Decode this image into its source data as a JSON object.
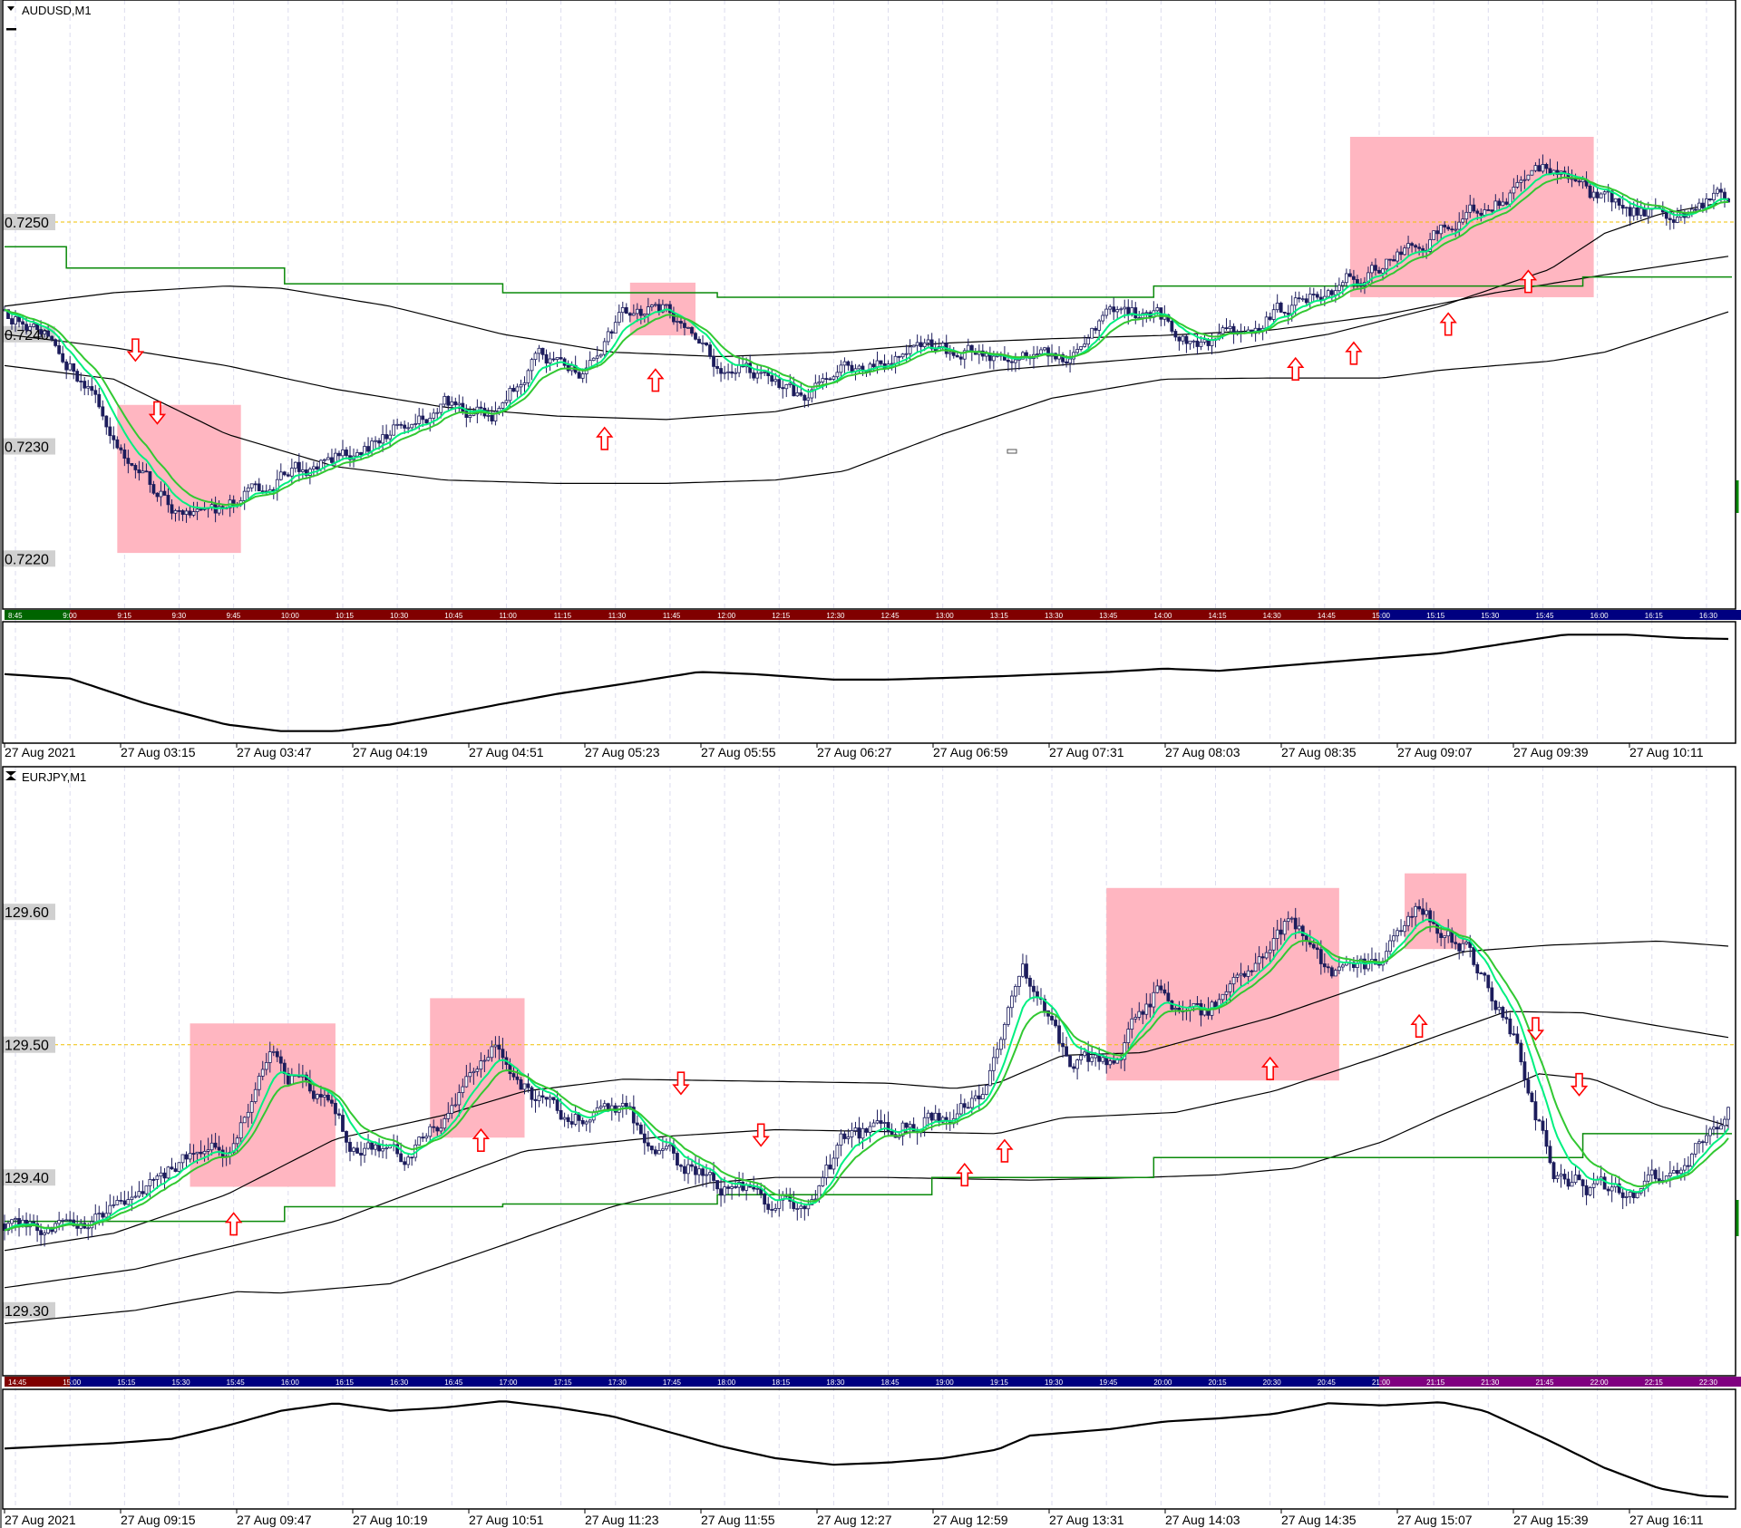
{
  "colors": {
    "candle_outline": "#1c1c5c",
    "bull_fill": "#ffffff",
    "bear_fill": "#1c1c5c",
    "ema_fast": "#00f080",
    "ema_slow": "#32c832",
    "band": "#000000",
    "step_line": "#0a8a0a",
    "box": "#ffb6c1",
    "arrow": "#ff0000",
    "bid_line": "#f0c000",
    "grid": "#dcdcee",
    "label_bg": "#d0d0d0"
  },
  "panes": [
    {
      "title": "AUDUSD,M1",
      "title_icon": "triangle-down-icon",
      "bars": 475,
      "price_range": [
        0.72155,
        0.72698
      ],
      "bid_price": 0.725,
      "price_labels": [
        "0.7250",
        "0.7240",
        "0.7230",
        "0.7220"
      ],
      "close_anchors": [
        0.72421,
        0.724,
        0.72343,
        0.72278,
        0.72237,
        0.72241,
        0.7227,
        0.72282,
        0.72298,
        0.72319,
        0.72339,
        0.72327,
        0.7238,
        0.72368,
        0.72417,
        0.72421,
        0.72376,
        0.72368,
        0.72339,
        0.72368,
        0.72376,
        0.72388,
        0.7238,
        0.72384,
        0.7238,
        0.72417,
        0.72417,
        0.72392,
        0.72404,
        0.72425,
        0.72441,
        0.72462,
        0.72482,
        0.72507,
        0.72523,
        0.72551,
        0.72519,
        0.72508,
        0.72511,
        0.72527
      ],
      "noise": 0.00013,
      "bands": [
        [
          [
            0,
            0.72425
          ],
          [
            30,
            0.72437
          ],
          [
            61,
            0.72443
          ],
          [
            76,
            0.72441
          ],
          [
            106,
            0.72425
          ],
          [
            137,
            0.724
          ],
          [
            167,
            0.72384
          ],
          [
            197,
            0.7238
          ],
          [
            228,
            0.72384
          ],
          [
            258,
            0.72392
          ],
          [
            288,
            0.72396
          ],
          [
            319,
            0.72399
          ],
          [
            349,
            0.72404
          ],
          [
            379,
            0.72417
          ],
          [
            410,
            0.72437
          ],
          [
            440,
            0.72453
          ],
          [
            475,
            0.7247
          ]
        ],
        [
          [
            0,
            0.724
          ],
          [
            30,
            0.72388
          ],
          [
            61,
            0.72372
          ],
          [
            91,
            0.72351
          ],
          [
            121,
            0.72335
          ],
          [
            152,
            0.72327
          ],
          [
            182,
            0.72324
          ],
          [
            212,
            0.72331
          ],
          [
            243,
            0.72351
          ],
          [
            273,
            0.72368
          ],
          [
            304,
            0.72376
          ],
          [
            334,
            0.72384
          ],
          [
            364,
            0.724
          ],
          [
            395,
            0.72425
          ],
          [
            425,
            0.72458
          ],
          [
            440,
            0.7249
          ],
          [
            455,
            0.72507
          ],
          [
            475,
            0.72519
          ]
        ],
        [
          [
            0,
            0.72372
          ],
          [
            30,
            0.7236
          ],
          [
            61,
            0.72311
          ],
          [
            91,
            0.72282
          ],
          [
            121,
            0.7227
          ],
          [
            152,
            0.72267
          ],
          [
            182,
            0.72267
          ],
          [
            212,
            0.7227
          ],
          [
            231,
            0.72278
          ],
          [
            258,
            0.72311
          ],
          [
            288,
            0.72343
          ],
          [
            319,
            0.7236
          ],
          [
            349,
            0.72361
          ],
          [
            379,
            0.72361
          ],
          [
            395,
            0.72368
          ],
          [
            425,
            0.72376
          ],
          [
            440,
            0.72384
          ],
          [
            475,
            0.72421
          ]
        ]
      ],
      "step_line": [
        [
          0,
          17,
          0.72478
        ],
        [
          17,
          77,
          0.72459
        ],
        [
          77,
          137,
          0.72445
        ],
        [
          137,
          196,
          0.72437
        ],
        [
          196,
          316,
          0.72433
        ],
        [
          316,
          434,
          0.72443
        ],
        [
          434,
          475,
          0.72451
        ]
      ],
      "boxes": [
        [
          31,
          65,
          0.72337,
          0.72205
        ],
        [
          172,
          190,
          0.72446,
          0.72399
        ],
        [
          370,
          437,
          0.72576,
          0.72433
        ]
      ],
      "arrows": [
        [
          36,
          0.72386,
          "down"
        ],
        [
          42,
          0.7233,
          "down"
        ],
        [
          165,
          0.72307,
          "up"
        ],
        [
          179,
          0.72359,
          "up"
        ],
        [
          355,
          0.72369,
          "up"
        ],
        [
          371,
          0.72383,
          "up"
        ],
        [
          397,
          0.72409,
          "up"
        ],
        [
          419,
          0.72447,
          "up"
        ]
      ],
      "time_labels": [
        "8:45",
        "9:00",
        "9:15",
        "9:30",
        "9:45",
        "10:00",
        "10:15",
        "10:30",
        "10:45",
        "11:00",
        "11:15",
        "11:30",
        "11:45",
        "12:00",
        "12:15",
        "12:30",
        "12:45",
        "13:00",
        "13:15",
        "13:30",
        "13:45",
        "14:00",
        "14:15",
        "14:30",
        "14:45",
        "15:00",
        "15:15",
        "15:30",
        "15:45",
        "16:00",
        "16:15",
        "16:30"
      ],
      "sessions": [
        [
          0,
          18,
          "#006400"
        ],
        [
          18,
          378,
          "#800000"
        ],
        [
          378,
          475,
          "#000080"
        ]
      ],
      "oscillator": [
        [
          0,
          58
        ],
        [
          18,
          54
        ],
        [
          39,
          31
        ],
        [
          61,
          12
        ],
        [
          76,
          6
        ],
        [
          91,
          6
        ],
        [
          106,
          12
        ],
        [
          121,
          21
        ],
        [
          137,
          31
        ],
        [
          152,
          40
        ],
        [
          170,
          49
        ],
        [
          191,
          60
        ],
        [
          206,
          58
        ],
        [
          228,
          53
        ],
        [
          243,
          53
        ],
        [
          273,
          56
        ],
        [
          304,
          60
        ],
        [
          319,
          63
        ],
        [
          334,
          61
        ],
        [
          364,
          69
        ],
        [
          395,
          77
        ],
        [
          419,
          89
        ],
        [
          429,
          94
        ],
        [
          446,
          94
        ],
        [
          461,
          91
        ],
        [
          475,
          90
        ]
      ],
      "date_labels": [
        "27 Aug 2021",
        "27 Aug 03:15",
        "27 Aug 03:47",
        "27 Aug 04:19",
        "27 Aug 04:51",
        "27 Aug 05:23",
        "27 Aug 05:55",
        "27 Aug 06:27",
        "27 Aug 06:59",
        "27 Aug 07:31",
        "27 Aug 08:03",
        "27 Aug 08:35",
        "27 Aug 09:07",
        "27 Aug 09:39",
        "27 Aug 10:11"
      ]
    },
    {
      "title": "EURJPY,M1",
      "title_icon": "collapse-icon",
      "bars": 475,
      "price_range": [
        129.2507,
        129.7093
      ],
      "bid_price": 129.5,
      "price_labels": [
        "129.60",
        "129.50",
        "129.40",
        "129.30"
      ],
      "close_anchors": [
        129.365,
        129.365,
        129.369,
        129.377,
        129.414,
        129.422,
        129.484,
        129.464,
        129.422,
        129.418,
        129.447,
        129.5,
        129.455,
        129.447,
        129.447,
        129.414,
        129.398,
        129.385,
        129.373,
        129.43,
        129.439,
        129.443,
        129.459,
        129.561,
        129.484,
        129.488,
        129.537,
        129.525,
        129.545,
        129.594,
        129.553,
        129.561,
        129.6,
        129.57,
        129.512,
        129.406,
        129.389,
        129.393,
        129.414,
        129.455
      ],
      "noise": 0.013,
      "bands": [
        [
          [
            0,
            129.345
          ],
          [
            30,
            129.358
          ],
          [
            61,
            129.387
          ],
          [
            91,
            129.429
          ],
          [
            121,
            129.447
          ],
          [
            143,
            129.465
          ],
          [
            170,
            129.474
          ],
          [
            243,
            129.471
          ],
          [
            261,
            129.467
          ],
          [
            273,
            129.471
          ],
          [
            291,
            129.492
          ],
          [
            313,
            129.494
          ],
          [
            349,
            129.521
          ],
          [
            401,
            129.57
          ],
          [
            425,
            129.575
          ],
          [
            455,
            129.578
          ],
          [
            475,
            129.574
          ]
        ],
        [
          [
            0,
            129.317
          ],
          [
            36,
            129.331
          ],
          [
            91,
            129.367
          ],
          [
            143,
            129.42
          ],
          [
            182,
            129.431
          ],
          [
            212,
            129.436
          ],
          [
            273,
            129.433
          ],
          [
            291,
            129.445
          ],
          [
            322,
            129.449
          ],
          [
            349,
            129.465
          ],
          [
            379,
            129.492
          ],
          [
            413,
            129.525
          ],
          [
            434,
            129.524
          ],
          [
            455,
            129.514
          ],
          [
            475,
            129.505
          ]
        ],
        [
          [
            0,
            129.29
          ],
          [
            36,
            129.3
          ],
          [
            64,
            129.314
          ],
          [
            76,
            129.313
          ],
          [
            106,
            129.32
          ],
          [
            137,
            129.349
          ],
          [
            167,
            129.378
          ],
          [
            194,
            129.396
          ],
          [
            212,
            129.4
          ],
          [
            243,
            129.4
          ],
          [
            282,
            129.398
          ],
          [
            313,
            129.4
          ],
          [
            334,
            129.402
          ],
          [
            355,
            129.407
          ],
          [
            379,
            129.427
          ],
          [
            395,
            129.447
          ],
          [
            422,
            129.478
          ],
          [
            437,
            129.474
          ],
          [
            455,
            129.454
          ],
          [
            475,
            129.438
          ]
        ]
      ],
      "step_line": [
        [
          0,
          77,
          129.367
        ],
        [
          77,
          137,
          129.378
        ],
        [
          137,
          196,
          129.38
        ],
        [
          196,
          255,
          129.387
        ],
        [
          255,
          316,
          129.4
        ],
        [
          316,
          434,
          129.415
        ],
        [
          434,
          475,
          129.433
        ]
      ],
      "boxes": [
        [
          51,
          91,
          129.516,
          129.393
        ],
        [
          117,
          143,
          129.535,
          129.43
        ],
        [
          303,
          367,
          129.618,
          129.473
        ],
        [
          385,
          402,
          129.629,
          129.572
        ]
      ],
      "arrows": [
        [
          63,
          129.365,
          "up"
        ],
        [
          131,
          129.428,
          "up"
        ],
        [
          186,
          129.471,
          "down"
        ],
        [
          208,
          129.432,
          "down"
        ],
        [
          264,
          129.402,
          "up"
        ],
        [
          275,
          129.42,
          "up"
        ],
        [
          348,
          129.482,
          "up"
        ],
        [
          389,
          129.514,
          "up"
        ],
        [
          421,
          129.512,
          "down"
        ],
        [
          433,
          129.47,
          "down"
        ]
      ],
      "time_labels": [
        "14:45",
        "15:00",
        "15:15",
        "15:30",
        "15:45",
        "16:00",
        "16:15",
        "16:30",
        "16:45",
        "17:00",
        "17:15",
        "17:30",
        "17:45",
        "18:00",
        "18:15",
        "18:30",
        "18:45",
        "19:00",
        "19:15",
        "19:30",
        "19:45",
        "20:00",
        "20:15",
        "20:30",
        "20:45",
        "21:00",
        "21:15",
        "21:30",
        "21:45",
        "22:00",
        "22:15",
        "22:30"
      ],
      "sessions": [
        [
          0,
          18,
          "#800000"
        ],
        [
          18,
          378,
          "#000080"
        ],
        [
          378,
          475,
          "#800080"
        ]
      ],
      "oscillator": [
        [
          0,
          51
        ],
        [
          30,
          56
        ],
        [
          46,
          60
        ],
        [
          61,
          72
        ],
        [
          76,
          86
        ],
        [
          91,
          93
        ],
        [
          106,
          86
        ],
        [
          121,
          89
        ],
        [
          137,
          95
        ],
        [
          152,
          89
        ],
        [
          167,
          81
        ],
        [
          182,
          67
        ],
        [
          197,
          53
        ],
        [
          212,
          42
        ],
        [
          228,
          36
        ],
        [
          243,
          38
        ],
        [
          258,
          42
        ],
        [
          273,
          50
        ],
        [
          282,
          63
        ],
        [
          304,
          69
        ],
        [
          319,
          76
        ],
        [
          334,
          79
        ],
        [
          349,
          83
        ],
        [
          364,
          93
        ],
        [
          379,
          91
        ],
        [
          395,
          94
        ],
        [
          407,
          86
        ],
        [
          425,
          58
        ],
        [
          440,
          33
        ],
        [
          455,
          14
        ],
        [
          467,
          7
        ],
        [
          475,
          6
        ]
      ],
      "date_labels": [
        "27 Aug 2021",
        "27 Aug 09:15",
        "27 Aug 09:47",
        "27 Aug 10:19",
        "27 Aug 10:51",
        "27 Aug 11:23",
        "27 Aug 11:55",
        "27 Aug 12:27",
        "27 Aug 12:59",
        "27 Aug 13:31",
        "27 Aug 14:03",
        "27 Aug 14:35",
        "27 Aug 15:07",
        "27 Aug 15:39",
        "27 Aug 16:11"
      ]
    }
  ]
}
